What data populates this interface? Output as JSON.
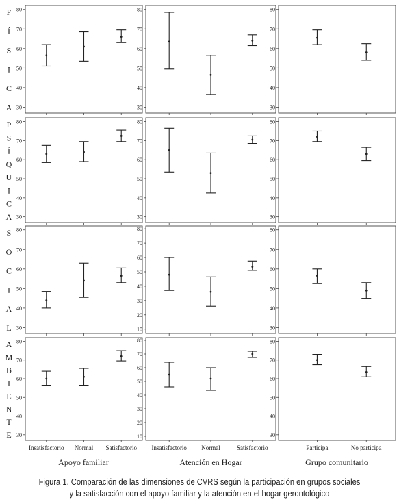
{
  "caption": {
    "line1": "Figura 1. Comparación de las dimensiones de CVRS según la participación en grupos sociales",
    "line2": "y la satisfacción con el apoyo familiar y la atención en el hogar gerontológico"
  },
  "row_labels": [
    [
      "F",
      "Í",
      "S",
      "I",
      "C",
      "A"
    ],
    [
      "P",
      "S",
      "Í",
      "Q",
      "U",
      "I",
      "C",
      "A"
    ],
    [
      "S",
      "O",
      "C",
      "I",
      "A",
      "L"
    ],
    [
      "A",
      "M",
      "B",
      "I",
      "E",
      "N",
      "T",
      "E"
    ]
  ],
  "column_titles": [
    "Apoyo familiar",
    "Atención en Hogar",
    "Grupo comunitario"
  ],
  "chart_data": [
    {
      "type": "errorbar",
      "row": "FÍSICA",
      "column": "Apoyo familiar",
      "categories": [
        "Insatisfactorio",
        "Normal",
        "Satisfactorio"
      ],
      "ylim": [
        27,
        82
      ],
      "yticks": [
        30,
        40,
        50,
        60,
        70,
        80
      ],
      "series": [
        {
          "mean": [
            56.5,
            61,
            66
          ],
          "lower": [
            51,
            53.5,
            63
          ],
          "upper": [
            62,
            68.5,
            69.5
          ]
        }
      ]
    },
    {
      "type": "errorbar",
      "row": "FÍSICA",
      "column": "Atención en Hogar",
      "categories": [
        "Insatisfactorio",
        "Normal",
        "Satisfactorio"
      ],
      "ylim": [
        27,
        82
      ],
      "yticks": [
        30,
        40,
        50,
        60,
        70,
        80
      ],
      "series": [
        {
          "mean": [
            63.5,
            46.5,
            64
          ],
          "lower": [
            49.5,
            36.5,
            61.5
          ],
          "upper": [
            78.5,
            56.5,
            67
          ]
        }
      ]
    },
    {
      "type": "errorbar",
      "row": "FÍSICA",
      "column": "Grupo comunitario",
      "categories": [
        "Participa",
        "No participa"
      ],
      "ylim": [
        27,
        82
      ],
      "yticks": [
        30,
        40,
        50,
        60,
        70,
        80
      ],
      "series": [
        {
          "mean": [
            65.5,
            58
          ],
          "lower": [
            62,
            54
          ],
          "upper": [
            69.5,
            62.5
          ]
        }
      ]
    },
    {
      "type": "errorbar",
      "row": "PSÍQUICA",
      "column": "Apoyo familiar",
      "categories": [
        "Insatisfactorio",
        "Normal",
        "Satisfactorio"
      ],
      "ylim": [
        27,
        82
      ],
      "yticks": [
        30,
        40,
        50,
        60,
        70,
        80
      ],
      "series": [
        {
          "mean": [
            63,
            64,
            72.5
          ],
          "lower": [
            58.5,
            59,
            69.5
          ],
          "upper": [
            67.5,
            69.5,
            75.5
          ]
        }
      ]
    },
    {
      "type": "errorbar",
      "row": "PSÍQUICA",
      "column": "Atención en Hogar",
      "categories": [
        "Insatisfactorio",
        "Normal",
        "Satisfactorio"
      ],
      "ylim": [
        27,
        82
      ],
      "yticks": [
        30,
        40,
        50,
        60,
        70,
        80
      ],
      "series": [
        {
          "mean": [
            65,
            53,
            70.5
          ],
          "lower": [
            53.5,
            42.5,
            68.5
          ],
          "upper": [
            76.5,
            63.5,
            72.5
          ]
        }
      ]
    },
    {
      "type": "errorbar",
      "row": "PSÍQUICA",
      "column": "Grupo comunitario",
      "categories": [
        "Participa",
        "No participa"
      ],
      "ylim": [
        27,
        82
      ],
      "yticks": [
        30,
        40,
        50,
        60,
        70,
        80
      ],
      "series": [
        {
          "mean": [
            72,
            63
          ],
          "lower": [
            69.5,
            59.5
          ],
          "upper": [
            75,
            66.5
          ]
        }
      ]
    },
    {
      "type": "errorbar",
      "row": "SOCIAL",
      "column": "Apoyo familiar",
      "categories": [
        "Insatisfactorio",
        "Normal",
        "Satisfactorio"
      ],
      "ylim": [
        27,
        82
      ],
      "yticks": [
        30,
        40,
        50,
        60,
        70,
        80
      ],
      "series": [
        {
          "mean": [
            44,
            54,
            56.5
          ],
          "lower": [
            40,
            45.5,
            53
          ],
          "upper": [
            48.5,
            63,
            60.5
          ]
        }
      ]
    },
    {
      "type": "errorbar",
      "row": "SOCIAL",
      "column": "Atención en Hogar",
      "categories": [
        "Insatisfactorio",
        "Normal",
        "Satisfactorio"
      ],
      "ylim": [
        7,
        82
      ],
      "yticks": [
        10,
        20,
        30,
        40,
        50,
        60,
        70,
        80
      ],
      "series": [
        {
          "mean": [
            48,
            36,
            53.5
          ],
          "lower": [
            37,
            26,
            51
          ],
          "upper": [
            60,
            46.5,
            57.5
          ]
        }
      ]
    },
    {
      "type": "errorbar",
      "row": "SOCIAL",
      "column": "Grupo comunitario",
      "categories": [
        "Participa",
        "No participa"
      ],
      "ylim": [
        27,
        82
      ],
      "yticks": [
        30,
        40,
        50,
        60,
        70,
        80
      ],
      "series": [
        {
          "mean": [
            56.5,
            49
          ],
          "lower": [
            52.5,
            45
          ],
          "upper": [
            60,
            53
          ]
        }
      ]
    },
    {
      "type": "errorbar",
      "row": "AMBIENTE",
      "column": "Apoyo familiar",
      "categories": [
        "Insatisfactorio",
        "Normal",
        "Satisfactorio"
      ],
      "ylim": [
        27,
        82
      ],
      "yticks": [
        30,
        40,
        50,
        60,
        70,
        80
      ],
      "series": [
        {
          "mean": [
            60,
            61,
            72
          ],
          "lower": [
            56.5,
            56.5,
            69.5
          ],
          "upper": [
            64,
            65.5,
            75
          ]
        }
      ]
    },
    {
      "type": "errorbar",
      "row": "AMBIENTE",
      "column": "Atención en Hogar",
      "categories": [
        "Insatisfactorio",
        "Normal",
        "Satisfactorio"
      ],
      "ylim": [
        7,
        82
      ],
      "yticks": [
        10,
        20,
        30,
        40,
        50,
        60,
        70,
        80
      ],
      "series": [
        {
          "mean": [
            55,
            52,
            70
          ],
          "lower": [
            46,
            43.5,
            67.5
          ],
          "upper": [
            64,
            60,
            72
          ]
        }
      ]
    },
    {
      "type": "errorbar",
      "row": "AMBIENTE",
      "column": "Grupo comunitario",
      "categories": [
        "Participa",
        "No participa"
      ],
      "ylim": [
        27,
        82
      ],
      "yticks": [
        30,
        40,
        50,
        60,
        70,
        80
      ],
      "series": [
        {
          "mean": [
            70,
            63.5
          ],
          "lower": [
            67.5,
            61
          ],
          "upper": [
            73,
            66.5
          ]
        }
      ]
    }
  ]
}
